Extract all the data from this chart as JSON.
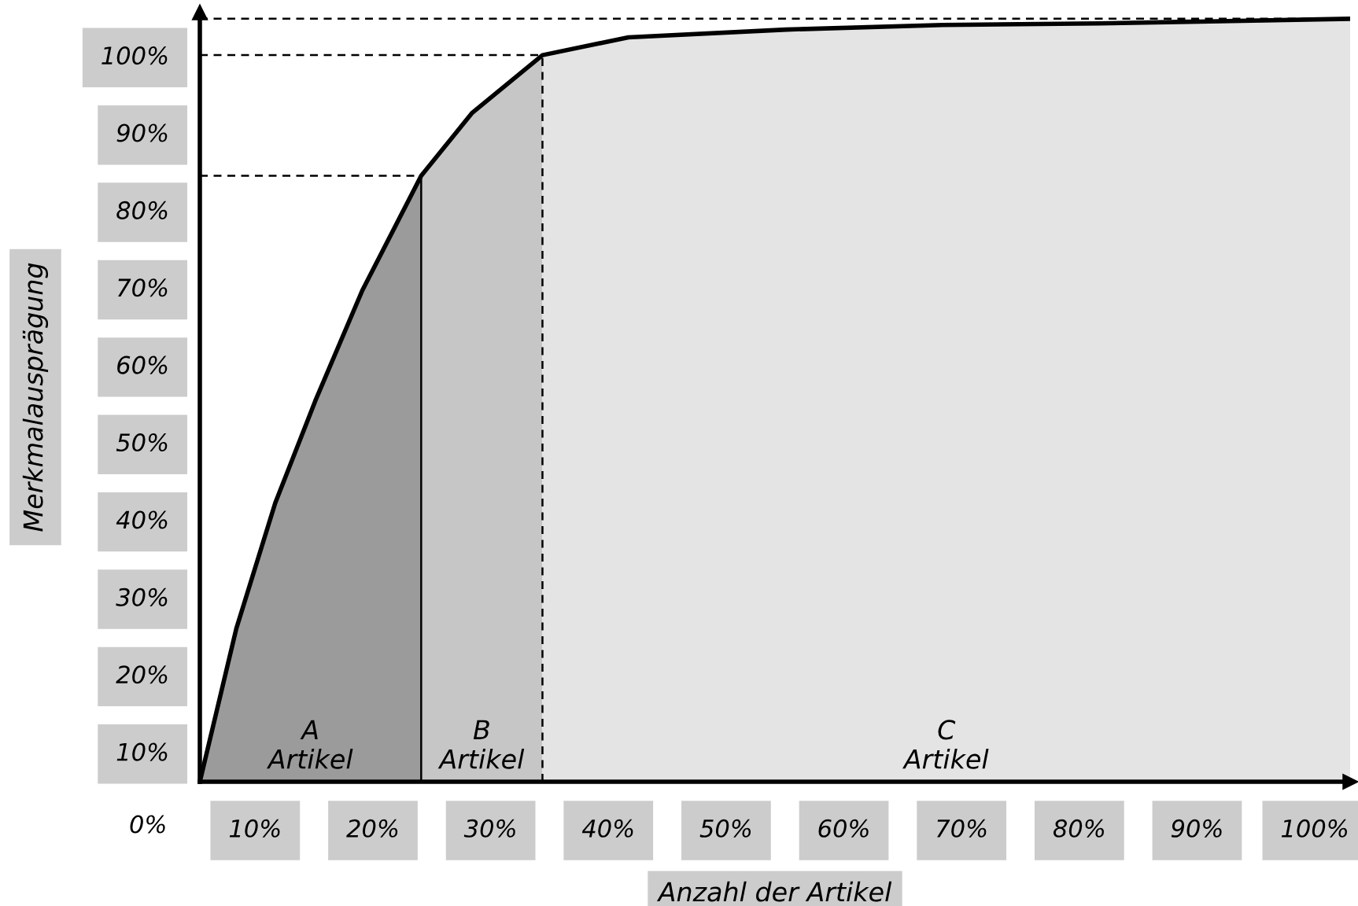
{
  "chart_data": {
    "type": "area",
    "xlabel": "Anzahl der Artikel",
    "ylabel": "Merkmalausprägung",
    "xlim": [
      5.3,
      103
    ],
    "ylim": [
      6.1,
      105.5
    ],
    "xticks": [
      {
        "value": 10,
        "label": "10%"
      },
      {
        "value": 20,
        "label": "20%"
      },
      {
        "value": 30,
        "label": "30%"
      },
      {
        "value": 40,
        "label": "40%"
      },
      {
        "value": 50,
        "label": "50%"
      },
      {
        "value": 60,
        "label": "60%"
      },
      {
        "value": 70,
        "label": "70%"
      },
      {
        "value": 80,
        "label": "80%"
      },
      {
        "value": 90,
        "label": "90%"
      },
      {
        "value": 100,
        "label": "100%"
      }
    ],
    "yticks": [
      {
        "value": 10,
        "label": "10%"
      },
      {
        "value": 20,
        "label": "20%"
      },
      {
        "value": 30,
        "label": "30%"
      },
      {
        "value": 40,
        "label": "40%"
      },
      {
        "value": 50,
        "label": "50%"
      },
      {
        "value": 60,
        "label": "60%"
      },
      {
        "value": 70,
        "label": "70%"
      },
      {
        "value": 80,
        "label": "80%"
      },
      {
        "value": 90,
        "label": "90%"
      },
      {
        "value": 100,
        "label": "100%"
      }
    ],
    "series": [
      {
        "color": "#9b9b9b",
        "x": [
          5.3,
          8.4,
          11.7,
          15.1,
          19.1,
          24.1
        ],
        "values": [
          6.1,
          25.9,
          42.1,
          55.3,
          69.6,
          84.4
        ]
      },
      {
        "color": "#c6c6c6",
        "x": [
          24.1,
          28.4,
          34.4
        ],
        "values": [
          84.4,
          92.5,
          100
        ]
      },
      {
        "color": "#e4e4e4",
        "x": [
          34.4,
          41.7,
          55.1,
          68.4,
          81.7,
          103
        ],
        "values": [
          100,
          102.3,
          103.3,
          103.9,
          104.1,
          104.7
        ]
      },
      {
        "type": "line",
        "color": "#000000",
        "line_style": "solid",
        "x": [
          5.3,
          8.4,
          11.7,
          15.1,
          19.1,
          24.1,
          28.4,
          34.4,
          41.7,
          55.1,
          68.4,
          81.7,
          103
        ],
        "values": [
          6.1,
          25.9,
          42.1,
          55.3,
          69.6,
          84.4,
          92.5,
          100,
          102.3,
          103.3,
          103.9,
          104.1,
          104.7
        ]
      },
      {
        "type": "line",
        "color": "#000000",
        "line_style": "dashed",
        "x": [
          5.3,
          24.1
        ],
        "values": [
          84.4,
          84.4
        ]
      },
      {
        "type": "line",
        "color": "#000000",
        "line_style": "dashed",
        "x": [
          5.3,
          34.4
        ],
        "values": [
          100,
          100
        ]
      },
      {
        "type": "line",
        "color": "#000000",
        "line_style": "dashed",
        "x": [
          5.3,
          103
        ],
        "values": [
          104.7,
          104.7
        ]
      },
      {
        "type": "line",
        "color": "#000000",
        "line_style": "dashed",
        "x": [
          34.4,
          34.4
        ],
        "values": [
          6.1,
          100
        ]
      },
      {
        "type": "line",
        "color": "#000000",
        "line_style": "solid",
        "x": [
          24.1,
          24.1
        ],
        "values": [
          6.1,
          84.4
        ]
      }
    ],
    "annotations": [
      "A\nArtikel",
      "B\nArtikel",
      "C\nArtikel",
      "0%"
    ],
    "grid": false,
    "legend": false
  }
}
